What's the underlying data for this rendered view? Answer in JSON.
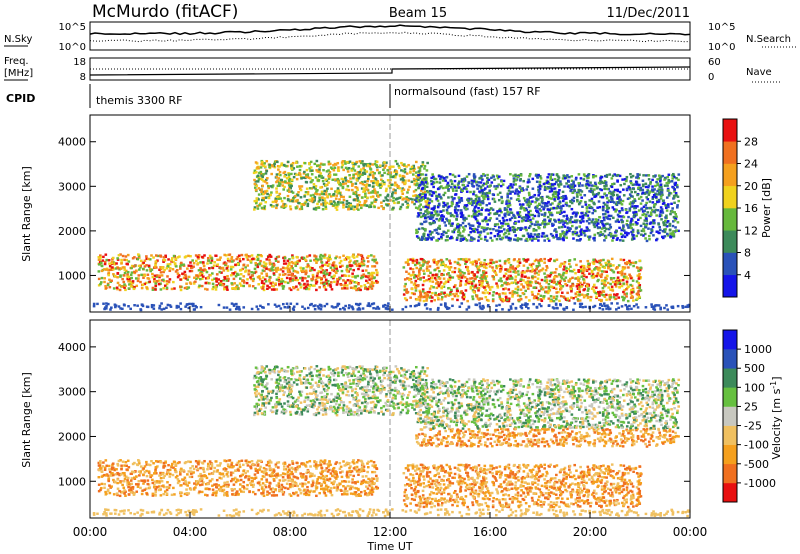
{
  "header": {
    "station": "McMurdo (fitACF)",
    "beam": "Beam 15",
    "date": "11/Dec/2011"
  },
  "noise_panel": {
    "left_label": "N.Sky",
    "left_ticks": [
      "10^5",
      "10^0"
    ],
    "right_ticks": [
      "10^5",
      "10^0"
    ],
    "right_label": "N.Search"
  },
  "freq_panel": {
    "left_label_top": "Freq.",
    "left_label_unit": "[MHz]",
    "left_ticks": [
      "18",
      "8"
    ],
    "right_ticks": [
      "60",
      "0"
    ],
    "right_label": "Nave"
  },
  "cpid": {
    "label": "CPID",
    "programs": [
      {
        "name": "themis 3300 RF",
        "start_hour": 0
      },
      {
        "name": "normalsound (fast) 157 RF",
        "start_hour": 12
      }
    ]
  },
  "colors": {
    "power": [
      "#1515e8",
      "#2a52b8",
      "#3c8a5a",
      "#66b83c",
      "#f0d21e",
      "#f5a01e",
      "#f07020",
      "#e81010"
    ],
    "velocity": [
      "#e81010",
      "#f07020",
      "#f5a01e",
      "#f0c060",
      "#c8c8c0",
      "#66c040",
      "#3c8a5a",
      "#2a52b8",
      "#1515e8"
    ]
  },
  "chart_data": [
    {
      "type": "heatmap",
      "name": "power",
      "ylabel": "Slant Range [km]",
      "xlim": [
        0,
        24
      ],
      "ylim": [
        180,
        4600
      ],
      "yticks": [
        1000,
        2000,
        3000,
        4000
      ],
      "colorbar": {
        "label": "Power [dB]",
        "ticks": [
          "4",
          "8",
          "12",
          "16",
          "20",
          "24",
          "28"
        ],
        "range": [
          0,
          32
        ]
      },
      "echo_bands": [
        {
          "t0": 0.3,
          "t1": 11.5,
          "r0": 700,
          "r1": 1500,
          "level": "high"
        },
        {
          "t0": 12.5,
          "t1": 22.0,
          "r0": 450,
          "r1": 1400,
          "level": "high"
        },
        {
          "t0": 6.5,
          "t1": 13.5,
          "r0": 2500,
          "r1": 3600,
          "level": "medium"
        },
        {
          "t0": 13.0,
          "t1": 23.5,
          "r0": 1800,
          "r1": 3300,
          "level": "low"
        }
      ]
    },
    {
      "type": "heatmap",
      "name": "velocity",
      "ylabel": "Slant Range [km]",
      "xlabel": "Time UT",
      "xlim": [
        0,
        24
      ],
      "ylim": [
        180,
        4600
      ],
      "yticks": [
        1000,
        2000,
        3000,
        4000
      ],
      "xticks": [
        "00:00",
        "04:00",
        "08:00",
        "12:00",
        "16:00",
        "20:00",
        "00:00"
      ],
      "colorbar": {
        "label": "Velocity [m s^-1]",
        "ticks": [
          "1000",
          "500",
          "100",
          "25",
          "-25",
          "-100",
          "-500",
          "-1000"
        ]
      }
    }
  ]
}
